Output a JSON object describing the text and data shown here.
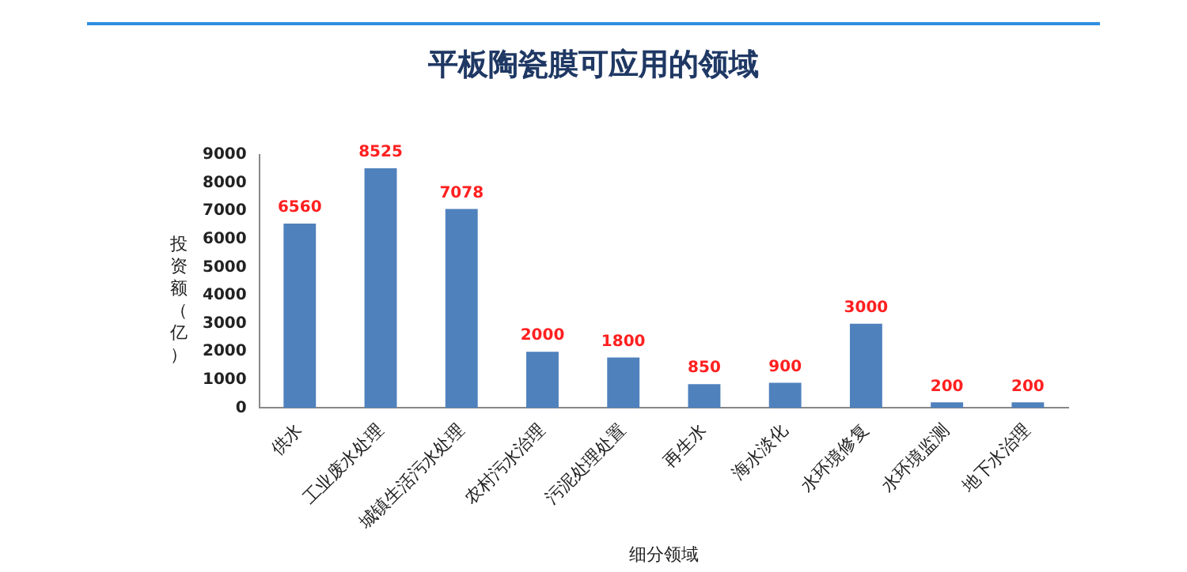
{
  "chart_data": {
    "type": "bar",
    "title": "平板陶瓷膜可应用的领域",
    "xlabel": "细分领域",
    "ylabel": "投资额（亿）",
    "categories": [
      "供水",
      "工业废水处理",
      "城镇生活污水处理",
      "农村污水治理",
      "污泥处理处置",
      "再生水",
      "海水淡化",
      "水环境修复",
      "水环境监测",
      "地下水治理"
    ],
    "values": [
      6560,
      8525,
      7078,
      2000,
      1800,
      850,
      900,
      3000,
      200,
      200
    ],
    "color": "#4f81bd",
    "ylim": [
      0,
      9000
    ],
    "yticks": [
      0,
      1000,
      2000,
      3000,
      4000,
      5000,
      6000,
      7000,
      8000,
      9000
    ],
    "grid": false,
    "legend": false,
    "data_labels": true
  }
}
